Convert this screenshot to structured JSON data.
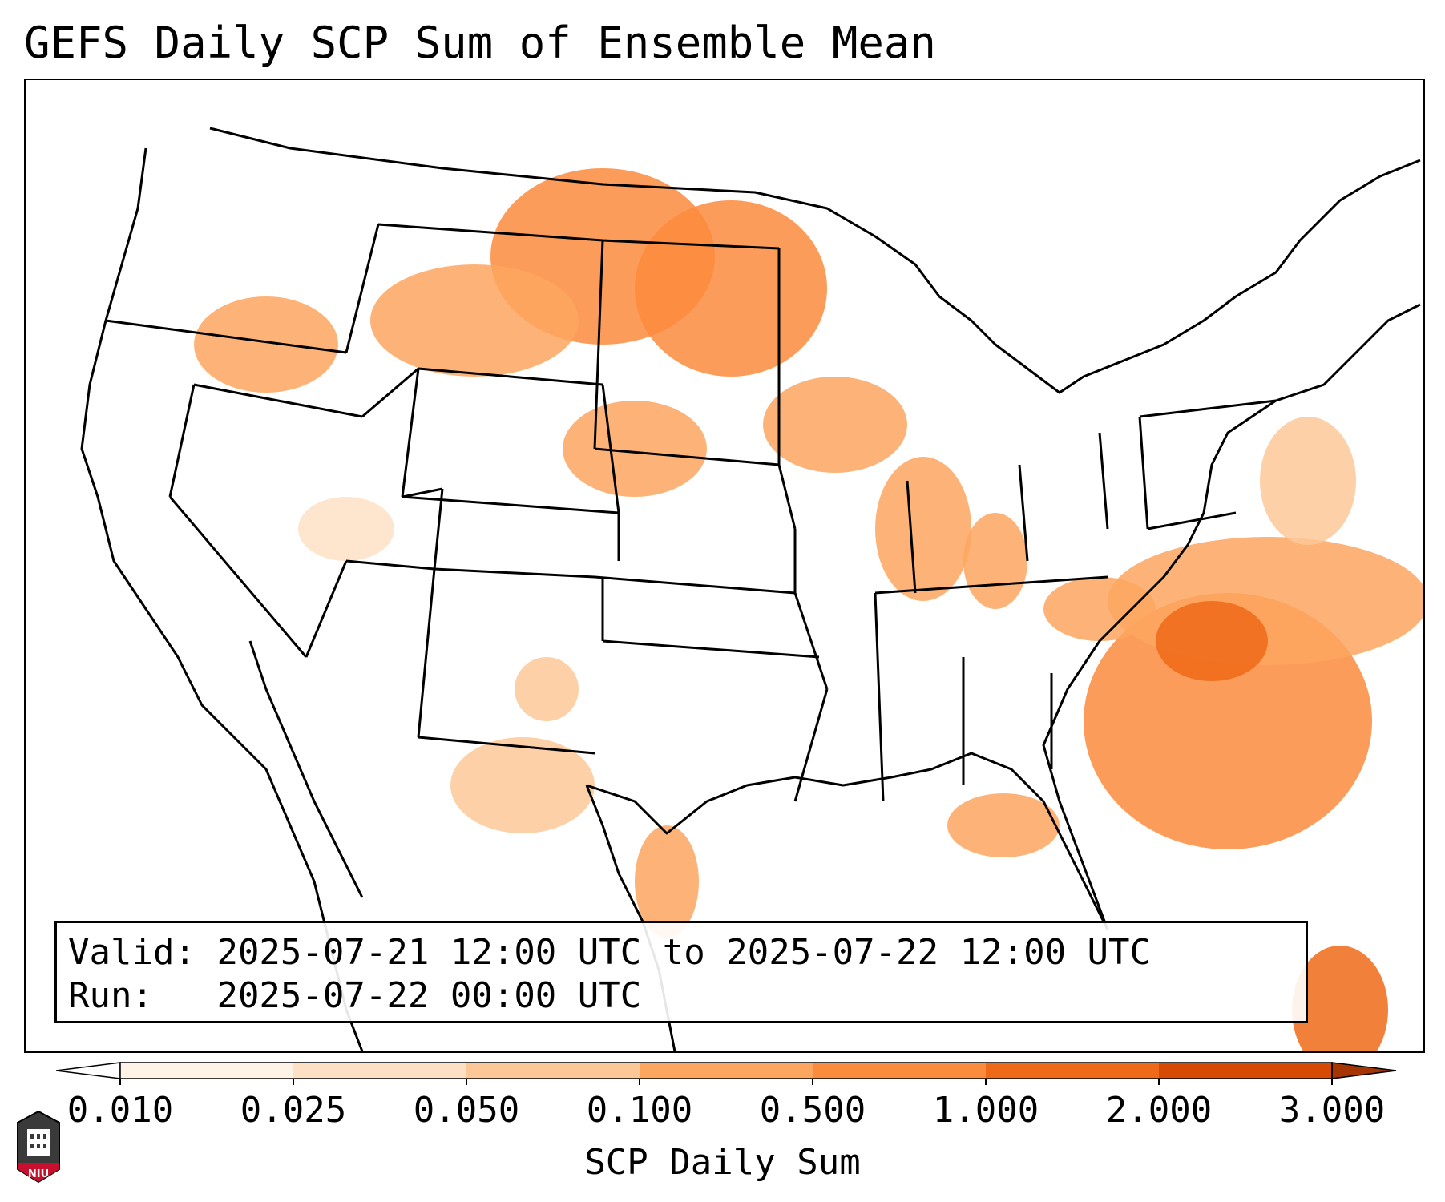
{
  "title": "GEFS Daily SCP Sum of Ensemble Mean",
  "info": {
    "valid_label": "Valid:",
    "valid_value": "2025-07-21 12:00 UTC to 2025-07-22 12:00 UTC",
    "run_label": "Run:",
    "run_value": "2025-07-22 00:00 UTC"
  },
  "colorbar": {
    "title": "SCP Daily Sum",
    "ticks": [
      "0.010",
      "0.025",
      "0.050",
      "0.100",
      "0.500",
      "1.000",
      "2.000",
      "3.000"
    ],
    "colors": [
      "#fff2e6",
      "#fee0c4",
      "#fdc898",
      "#fda65f",
      "#fb8b3d",
      "#ef6a18",
      "#d64a04",
      "#a53603"
    ]
  },
  "logo": {
    "text": "NIU"
  }
}
